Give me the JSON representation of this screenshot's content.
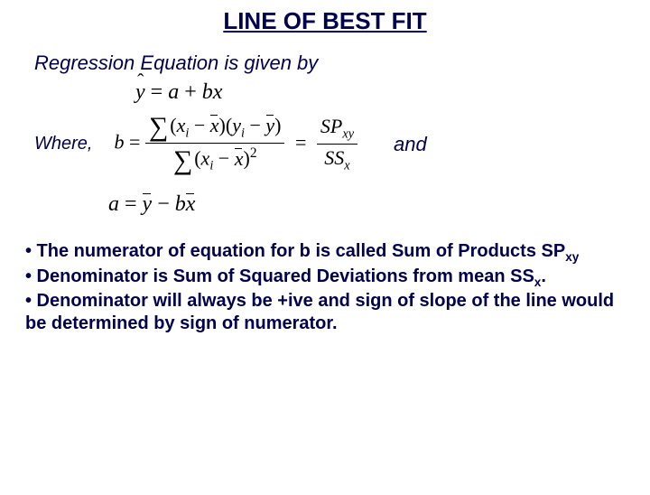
{
  "title": "LINE OF BEST FIT",
  "intro": "Regression Equation is given by",
  "where_label": "Where,",
  "and_label": "and",
  "bullets": {
    "b1a": "•  The numerator of equation for b is called Sum of Products SP",
    "b1_sub": "xy",
    "b2a": "•  Denominator is Sum of Squared Deviations from mean SS",
    "b2_sub": "x",
    "b2_end": ".",
    "b3": "•  Denominator will always be +ive and sign of slope of    the line would be determined by sign of numerator."
  },
  "colors": {
    "text": "#00004d",
    "background": "#ffffff",
    "formula": "#000000"
  }
}
